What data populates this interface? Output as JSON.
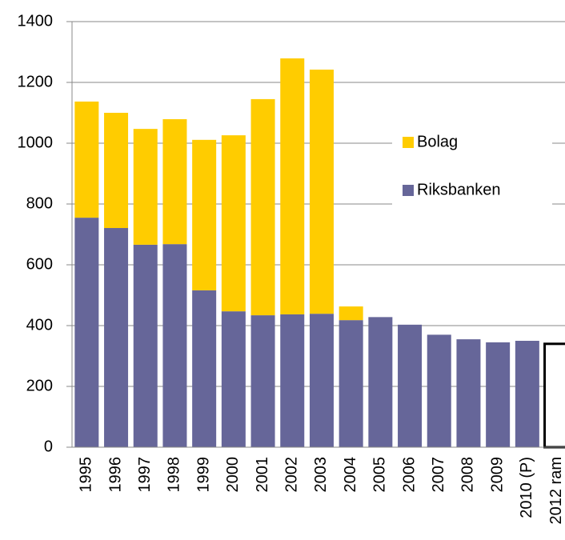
{
  "chart_data": {
    "type": "stacked_bar",
    "categories": [
      "1995",
      "1996",
      "1997",
      "1998",
      "1999",
      "2000",
      "2001",
      "2002",
      "2003",
      "2004",
      "2005",
      "2006",
      "2007",
      "2008",
      "2009",
      "2010 (P)",
      "2012 ram"
    ],
    "series": [
      {
        "name": "Riksbanken",
        "color": "#666699",
        "values": [
          755,
          721,
          666,
          668,
          516,
          447,
          434,
          437,
          439,
          418,
          428,
          403,
          370,
          355,
          345,
          350,
          340
        ]
      },
      {
        "name": "Bolag",
        "color": "#ffcc00",
        "values": [
          382,
          379,
          381,
          411,
          495,
          579,
          711,
          842,
          803,
          45,
          null,
          null,
          null,
          null,
          null,
          null,
          null
        ]
      }
    ],
    "highlight": {
      "index": 16,
      "fill": "#ffffff",
      "stroke": "#000000"
    },
    "ylim": [
      0,
      1400
    ],
    "yticks": [
      0,
      200,
      400,
      600,
      800,
      1000,
      1200,
      1400
    ],
    "grid": true,
    "legend": "right"
  }
}
